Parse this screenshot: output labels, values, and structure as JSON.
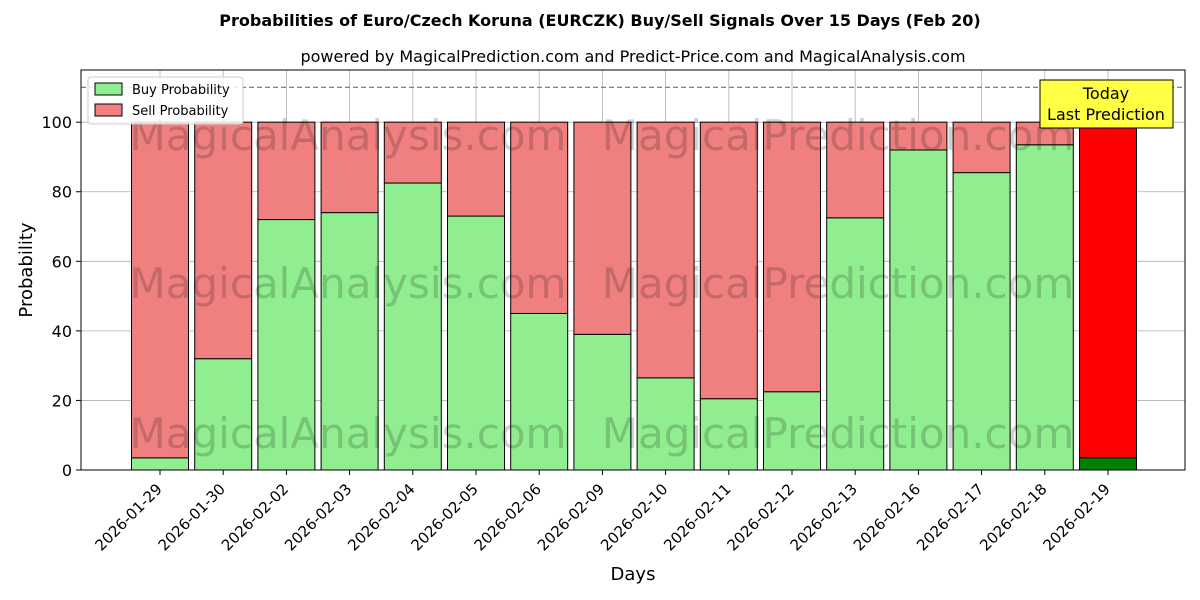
{
  "chart_data": {
    "type": "bar",
    "stacked": true,
    "title": "Probabilities of Euro/Czech Koruna (EURCZK) Buy/Sell Signals Over 15 Days (Feb 20)",
    "subtitle": "powered by MagicalPrediction.com and Predict-Price.com and MagicalAnalysis.com",
    "xlabel": "Days",
    "ylabel": "Probability",
    "ylim": [
      0,
      115
    ],
    "yticks": [
      0,
      20,
      40,
      60,
      80,
      100
    ],
    "grid": true,
    "legend_position": "top-left",
    "reference_line": 110,
    "categories": [
      "2026-01-29",
      "2026-01-30",
      "2026-02-02",
      "2026-02-03",
      "2026-02-04",
      "2026-02-05",
      "2026-02-06",
      "2026-02-09",
      "2026-02-10",
      "2026-02-11",
      "2026-02-12",
      "2026-02-13",
      "2026-02-16",
      "2026-02-17",
      "2026-02-18",
      "2026-02-19"
    ],
    "series": [
      {
        "name": "Buy Probability",
        "color": "#90ee90",
        "values": [
          3.5,
          32,
          72,
          74,
          82.5,
          73,
          45,
          39,
          26.5,
          20.5,
          22.5,
          72.5,
          92,
          85.5,
          93.5,
          3.5
        ]
      },
      {
        "name": "Sell Probability",
        "color": "#f08080",
        "values": [
          96.5,
          68,
          28,
          26,
          17.5,
          27,
          55,
          61,
          73.5,
          79.5,
          77.5,
          27.5,
          8,
          14.5,
          6.5,
          96.5
        ]
      }
    ],
    "highlight": {
      "index": 15,
      "buy_color": "#008000",
      "sell_color": "#ff0000"
    },
    "annotation": {
      "line1": "Today",
      "line2": "Last Prediction"
    },
    "watermarks": [
      "MagicalAnalysis.com",
      "MagicalPrediction.com"
    ]
  }
}
